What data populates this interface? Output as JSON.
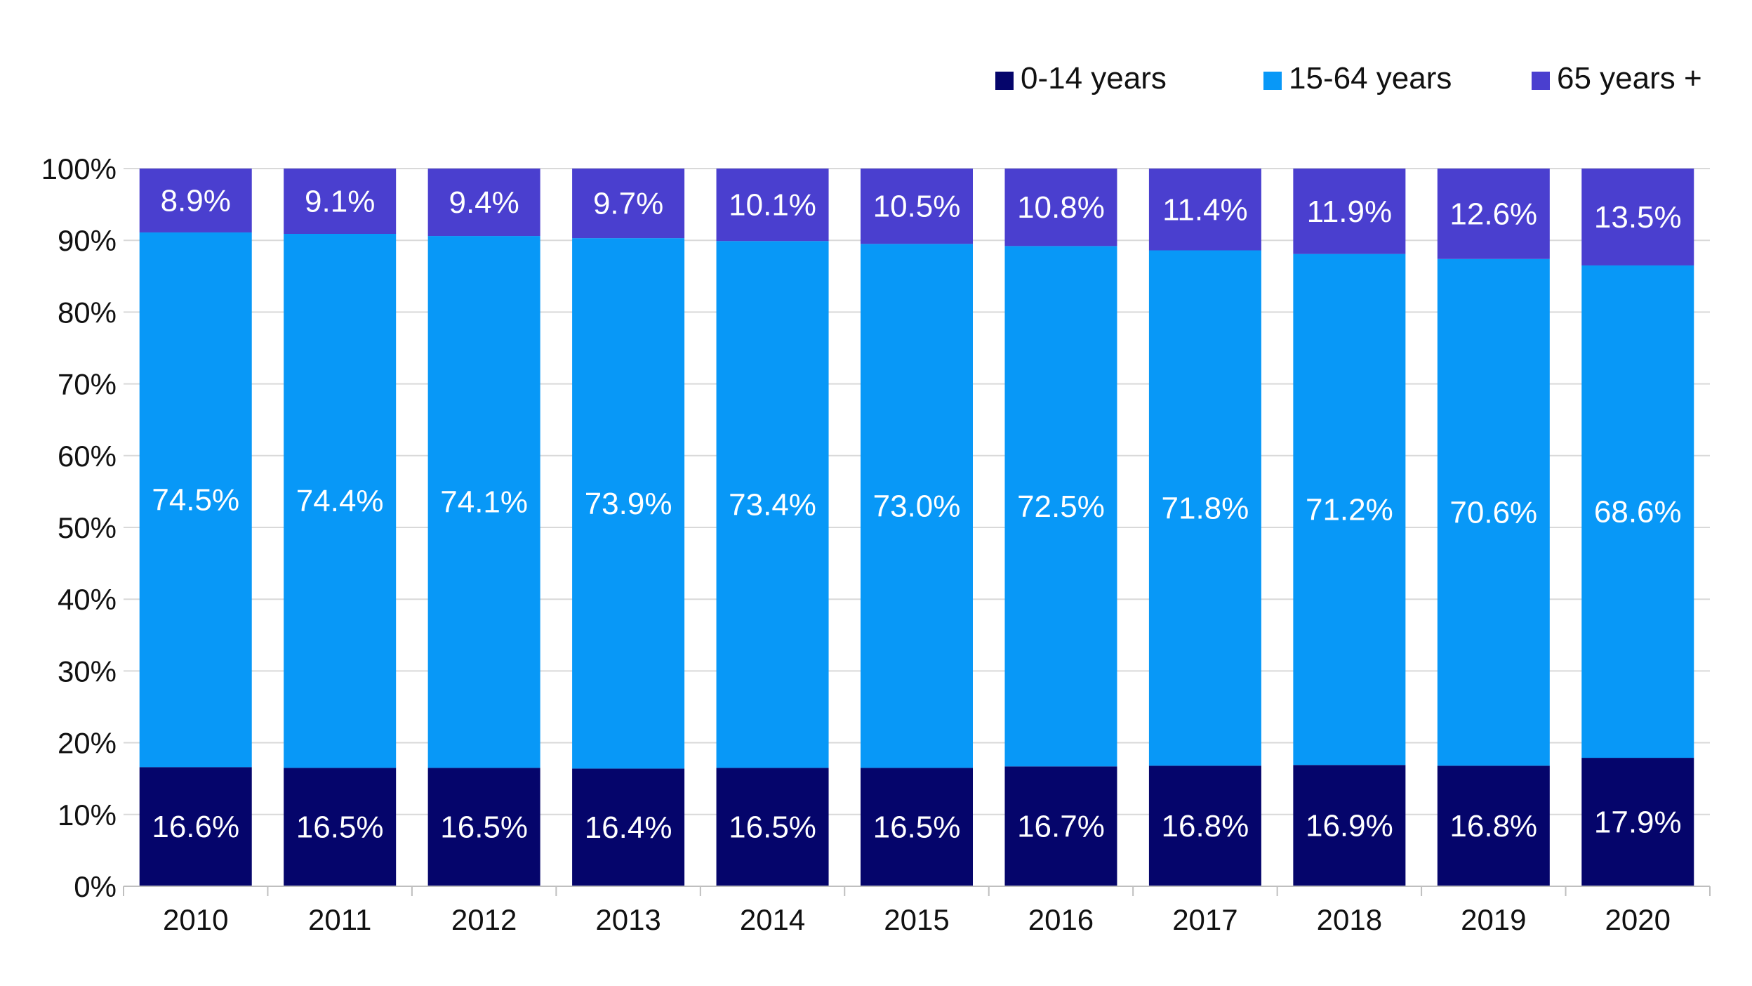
{
  "chart_data": {
    "type": "bar",
    "stacked": true,
    "categories": [
      "2010",
      "2011",
      "2012",
      "2013",
      "2014",
      "2015",
      "2016",
      "2017",
      "2018",
      "2019",
      "2020"
    ],
    "series": [
      {
        "name": "0-14 years",
        "color": "#05056b",
        "values": [
          16.6,
          16.5,
          16.5,
          16.4,
          16.5,
          16.5,
          16.7,
          16.8,
          16.9,
          16.8,
          17.9
        ],
        "labels": [
          "16.6%",
          "16.5%",
          "16.5%",
          "16.4%",
          "16.5%",
          "16.5%",
          "16.7%",
          "16.8%",
          "16.9%",
          "16.8%",
          "17.9%"
        ]
      },
      {
        "name": "15-64 years",
        "color": "#0898f7",
        "values": [
          74.5,
          74.4,
          74.1,
          73.9,
          73.4,
          73.0,
          72.5,
          71.8,
          71.2,
          70.6,
          68.6
        ],
        "labels": [
          "74.5%",
          "74.4%",
          "74.1%",
          "73.9%",
          "73.4%",
          "73.0%",
          "72.5%",
          "71.8%",
          "71.2%",
          "70.6%",
          "68.6%"
        ]
      },
      {
        "name": "65 years +",
        "color": "#4a3fcf",
        "values": [
          8.9,
          9.1,
          9.4,
          9.7,
          10.1,
          10.5,
          10.8,
          11.4,
          11.9,
          12.6,
          13.5
        ],
        "labels": [
          "8.9%",
          "9.1%",
          "9.4%",
          "9.7%",
          "10.1%",
          "10.5%",
          "10.8%",
          "11.4%",
          "11.9%",
          "12.6%",
          "13.5%"
        ]
      }
    ],
    "yticks": [
      "0%",
      "10%",
      "20%",
      "30%",
      "40%",
      "50%",
      "60%",
      "70%",
      "80%",
      "90%",
      "100%"
    ],
    "ylim": [
      0,
      100
    ],
    "grid": true,
    "legend_position": "top-right",
    "title": "",
    "xlabel": "",
    "ylabel": ""
  }
}
